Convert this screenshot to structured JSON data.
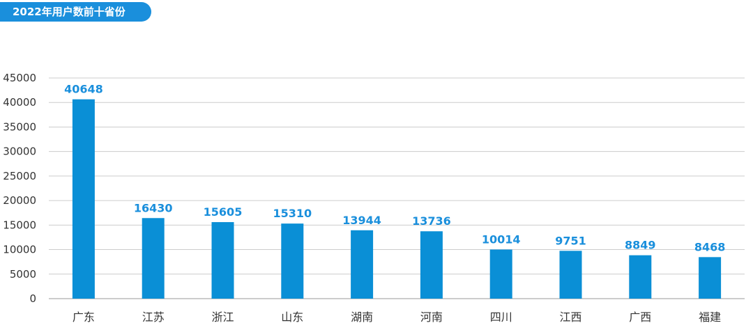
{
  "header": {
    "title": "2022年用户数前十省份"
  },
  "chart_data": {
    "type": "bar",
    "title": "2022年用户数前十省份",
    "xlabel": "",
    "ylabel": "",
    "categories": [
      "广东",
      "江苏",
      "浙江",
      "山东",
      "湖南",
      "河南",
      "四川",
      "江西",
      "广西",
      "福建"
    ],
    "values": [
      40648,
      16430,
      15605,
      15310,
      13944,
      13736,
      10014,
      9751,
      8849,
      8468
    ],
    "ylim": [
      0,
      45000
    ],
    "yticks": [
      "0",
      "5000",
      "10000",
      "15000",
      "20000",
      "25000",
      "30000",
      "35000",
      "40000",
      "45000"
    ],
    "grid": true,
    "bar_color": "#0a8fd6",
    "label_color": "#1a8fdc"
  }
}
